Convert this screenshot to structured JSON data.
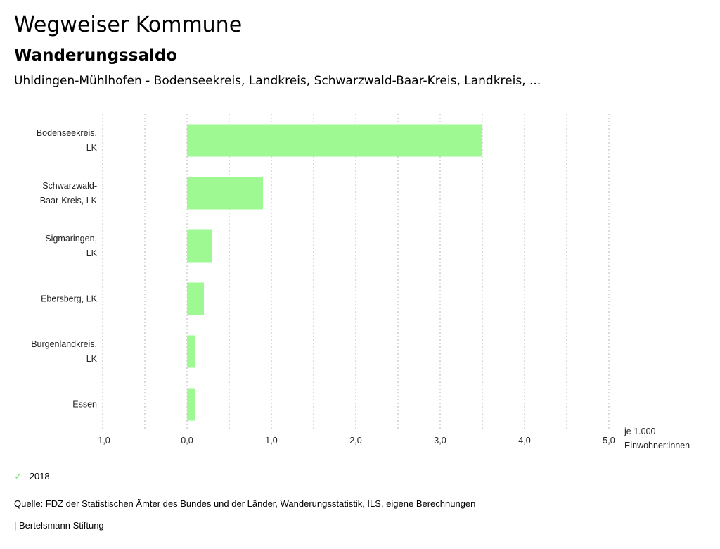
{
  "header": {
    "title": "Wegweiser Kommune",
    "subtitle": "Wanderungssaldo",
    "region": "Uhldingen-Mühlhofen - Bodenseekreis, Landkreis, Schwarzwald-Baar-Kreis, Landkreis, ..."
  },
  "chart_data": {
    "type": "bar",
    "orientation": "horizontal",
    "title": "Wanderungssaldo",
    "categories": [
      [
        "Bodenseekreis,",
        "LK"
      ],
      [
        "Schwarzwald-",
        "Baar-Kreis, LK"
      ],
      [
        "Sigmaringen,",
        "LK"
      ],
      [
        "Ebersberg, LK"
      ],
      [
        "Burgenlandkreis,",
        "LK"
      ],
      [
        "Essen"
      ]
    ],
    "series": [
      {
        "name": "2018",
        "color": "#9ef993",
        "values": [
          3.5,
          0.9,
          0.3,
          0.2,
          0.1,
          0.1
        ]
      }
    ],
    "xlim": [
      -1.0,
      5.0
    ],
    "xticks": [
      -1.0,
      0.0,
      1.0,
      2.0,
      3.0,
      4.0,
      5.0
    ],
    "xtick_labels": [
      "-1,0",
      "0,0",
      "1,0",
      "2,0",
      "3,0",
      "4,0",
      "5,0"
    ],
    "xlabel": [
      "je 1.000",
      "Einwohner:innen"
    ],
    "grid": "vertical-dashed",
    "legend_position": "bottom-left"
  },
  "legend": {
    "label": "2018",
    "color": "#9ef993"
  },
  "footer": {
    "source": "Quelle: FDZ der Statistischen Ämter des Bundes und der Länder, Wanderungsstatistik, ILS, eigene Berechnungen",
    "credit": "| Bertelsmann Stiftung"
  }
}
